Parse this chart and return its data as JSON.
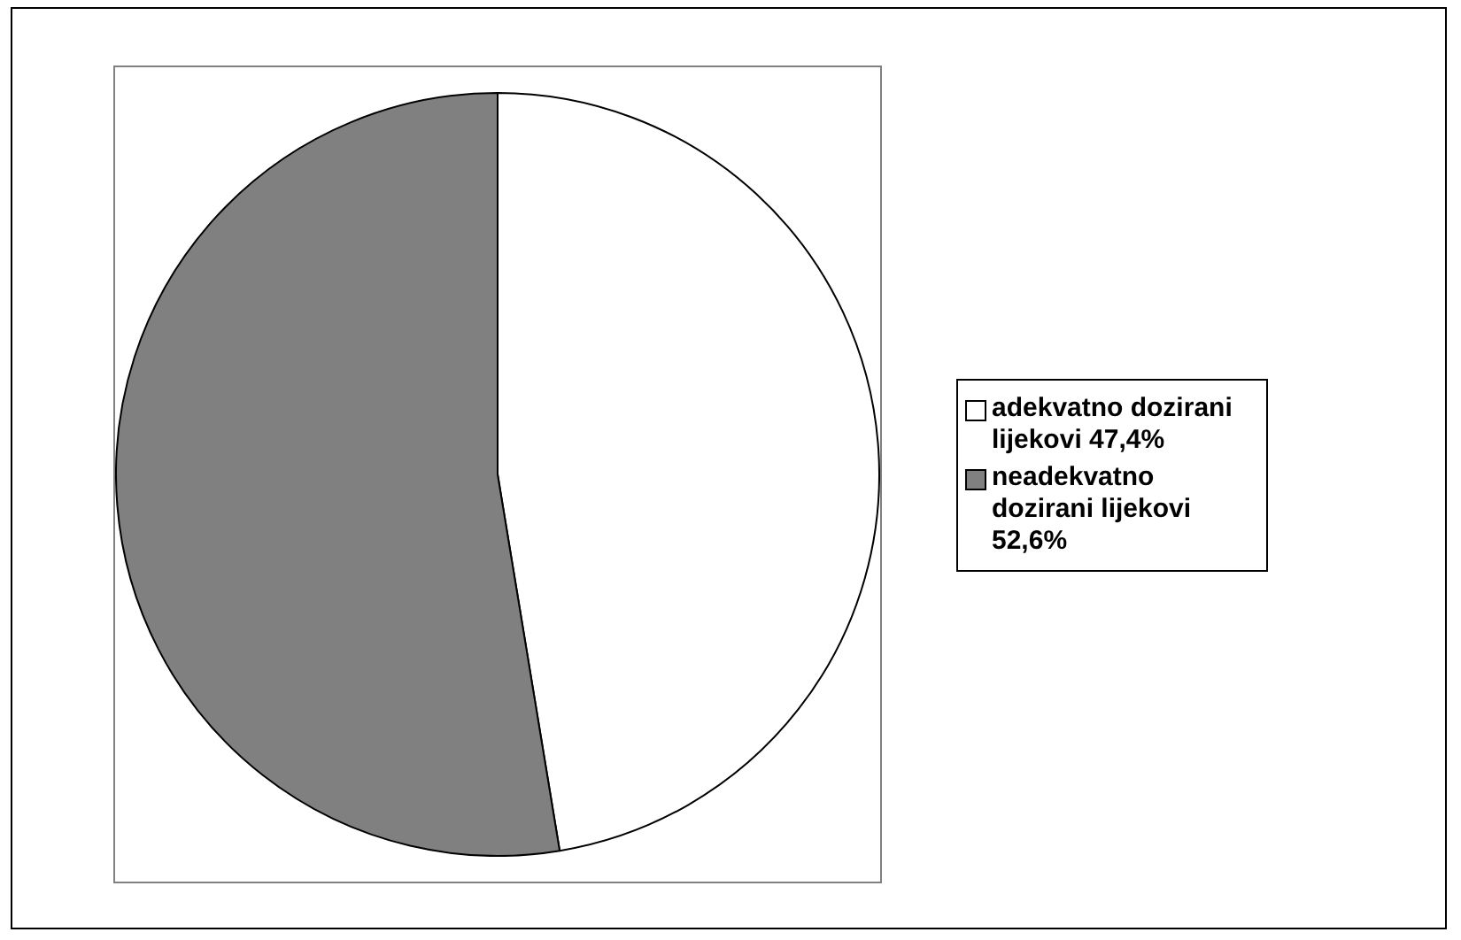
{
  "chart_data": {
    "type": "pie",
    "categories": [
      "adekvatno dozirani lijekovi 47,4%",
      "neadekvatno dozirani lijekovi 52,6%"
    ],
    "values": [
      47.4,
      52.6
    ],
    "colors": [
      "#ffffff",
      "#808080"
    ],
    "legend": "right"
  }
}
